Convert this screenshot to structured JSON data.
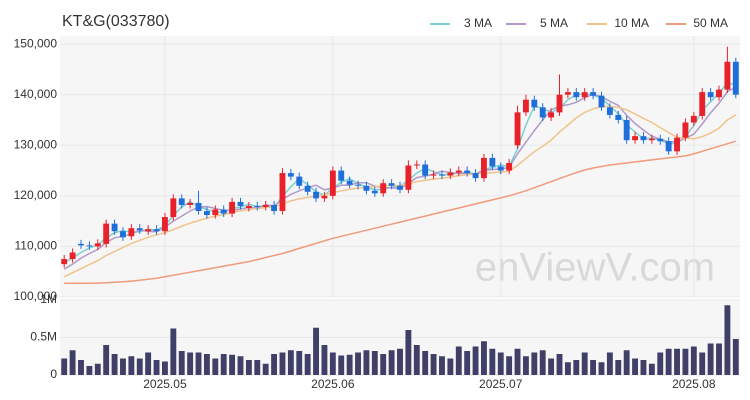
{
  "chart_data": {
    "type": "candlestick",
    "title": "KT&G(033780)",
    "watermark": "enViewV.com",
    "legend": "top-right",
    "up_color": "#e8212b",
    "down_color": "#1f6fdb",
    "grid": true,
    "categories": [
      null,
      null,
      null,
      null,
      null,
      null,
      null,
      null,
      null,
      null,
      null,
      null,
      "2025.05",
      null,
      null,
      null,
      null,
      null,
      null,
      null,
      null,
      null,
      null,
      null,
      null,
      null,
      null,
      null,
      null,
      null,
      null,
      null,
      "2025.06",
      null,
      null,
      null,
      null,
      null,
      null,
      null,
      null,
      null,
      null,
      null,
      null,
      null,
      null,
      null,
      null,
      null,
      null,
      null,
      "2025.07",
      null,
      null,
      null,
      null,
      null,
      null,
      null,
      null,
      null,
      null,
      null,
      null,
      null,
      null,
      null,
      null,
      null,
      null,
      null,
      null,
      null,
      null,
      "2025.08",
      null,
      null,
      null,
      null,
      null
    ],
    "open": [
      106500,
      107500,
      110500,
      110200,
      110000,
      110500,
      114500,
      113000,
      112000,
      113600,
      113000,
      113400,
      113000,
      115800,
      119500,
      118200,
      118600,
      117000,
      116200,
      117300,
      116500,
      118800,
      117600,
      118000,
      117800,
      118200,
      117000,
      124500,
      123800,
      122000,
      120800,
      119500,
      120000,
      125000,
      123000,
      122200,
      122000,
      121000,
      120500,
      122500,
      122000,
      121200,
      126000,
      126200,
      124000,
      124200,
      124000,
      124600,
      125000,
      124500,
      123500,
      127500,
      125800,
      125000,
      130000,
      136500,
      139000,
      137500,
      135500,
      136500,
      140000,
      140500,
      139500,
      140500,
      139800,
      137500,
      136000,
      135000,
      131000,
      131800,
      131000,
      131300,
      130800,
      128800,
      131500,
      134500,
      135800,
      140500,
      139500,
      141000,
      146500
    ],
    "high": [
      108300,
      109600,
      111300,
      111000,
      111400,
      115300,
      115300,
      113800,
      114400,
      114400,
      114200,
      114200,
      116600,
      120300,
      120300,
      119400,
      121000,
      117800,
      118100,
      118100,
      119600,
      119600,
      118800,
      118800,
      119000,
      119000,
      125500,
      125300,
      124600,
      122800,
      121600,
      120800,
      125800,
      125800,
      123800,
      123000,
      122800,
      121800,
      123300,
      123300,
      122800,
      127000,
      127000,
      127000,
      125000,
      125000,
      125400,
      125800,
      125800,
      125300,
      128300,
      128300,
      126600,
      127300,
      137800,
      140000,
      139800,
      138300,
      137300,
      144000,
      141300,
      141300,
      141300,
      141300,
      140600,
      138300,
      136800,
      135800,
      132600,
      132600,
      132100,
      132100,
      131600,
      132300,
      135300,
      136600,
      141300,
      141300,
      141800,
      149500,
      147300
    ],
    "low": [
      105800,
      106800,
      109500,
      109300,
      109300,
      109800,
      112300,
      111100,
      111300,
      112500,
      112300,
      112300,
      112300,
      115100,
      117500,
      117500,
      116300,
      115500,
      115500,
      115800,
      115800,
      117300,
      116900,
      117100,
      117100,
      116300,
      116300,
      123100,
      121300,
      120100,
      118800,
      118800,
      119300,
      122300,
      121500,
      121300,
      120300,
      119800,
      119800,
      121300,
      120500,
      120500,
      125300,
      123300,
      123300,
      123300,
      123300,
      123900,
      123800,
      122800,
      122800,
      125100,
      124300,
      124300,
      129300,
      135800,
      136800,
      134800,
      134800,
      135800,
      139300,
      138800,
      138800,
      139100,
      136800,
      135300,
      134300,
      130300,
      130300,
      130300,
      130300,
      130100,
      128100,
      128100,
      130800,
      133800,
      135100,
      138800,
      138800,
      140300,
      139300
    ],
    "close": [
      107500,
      108800,
      110200,
      110000,
      110600,
      114500,
      113000,
      111800,
      113600,
      113200,
      113400,
      113000,
      115800,
      119500,
      118200,
      118600,
      117000,
      116200,
      117300,
      116500,
      118800,
      118000,
      118000,
      117800,
      118200,
      117000,
      124500,
      123800,
      122000,
      120800,
      119500,
      120000,
      125000,
      123000,
      122200,
      122000,
      121000,
      120500,
      122500,
      122000,
      121200,
      126000,
      126200,
      124000,
      124200,
      124000,
      124600,
      125000,
      124500,
      123500,
      127500,
      125800,
      125000,
      126500,
      136500,
      139000,
      137500,
      135500,
      136500,
      140000,
      140500,
      139500,
      140500,
      139800,
      137500,
      136000,
      135000,
      131000,
      131800,
      131000,
      131300,
      130800,
      128800,
      131500,
      134500,
      135800,
      140500,
      139500,
      141000,
      146500,
      140000
    ],
    "ylim": [
      100000,
      151600
    ],
    "yticks": [
      {
        "value": 100000,
        "label": "100,000"
      },
      {
        "value": 110000,
        "label": "110,000"
      },
      {
        "value": 120000,
        "label": "120,000"
      },
      {
        "value": 130000,
        "label": "130,000"
      },
      {
        "value": 140000,
        "label": "140,000"
      },
      {
        "value": 150000,
        "label": "150,000"
      }
    ],
    "series": [
      {
        "name": "3 MA",
        "color": "#7ccfd0",
        "values": [
          106800,
          107700,
          108800,
          109700,
          110300,
          111700,
          112700,
          113100,
          112800,
          112900,
          113400,
          113200,
          114100,
          116100,
          117800,
          118800,
          117900,
          117300,
          116800,
          116700,
          117500,
          117800,
          118300,
          117900,
          118000,
          117700,
          119900,
          121800,
          123400,
          122200,
          120800,
          120100,
          121500,
          122700,
          123400,
          122400,
          121700,
          121200,
          121300,
          121700,
          121900,
          123100,
          124500,
          125400,
          124800,
          124100,
          124300,
          124500,
          124700,
          124300,
          125200,
          125600,
          126100,
          125800,
          129300,
          134000,
          137700,
          137300,
          136500,
          137300,
          139000,
          140000,
          140200,
          139900,
          139300,
          137800,
          136200,
          134000,
          132600,
          131300,
          131400,
          131000,
          130300,
          130400,
          131600,
          133900,
          136900,
          138600,
          140300,
          142300,
          142000
        ]
      },
      {
        "name": "5 MA",
        "color": "#b19ac9",
        "values": [
          105500,
          106500,
          107700,
          108600,
          109400,
          110800,
          111700,
          112000,
          112500,
          113200,
          113000,
          112900,
          113800,
          115000,
          116000,
          117000,
          117800,
          117900,
          117500,
          117100,
          117100,
          117400,
          117700,
          117600,
          118200,
          118000,
          119300,
          120300,
          121000,
          121600,
          122100,
          121200,
          121500,
          122100,
          122100,
          122600,
          122600,
          121900,
          121600,
          121600,
          121400,
          122500,
          123600,
          123900,
          124300,
          124900,
          124600,
          124400,
          124500,
          124300,
          125000,
          125200,
          125300,
          125600,
          128300,
          130600,
          132900,
          135000,
          137000,
          137700,
          138000,
          138500,
          139400,
          140100,
          139600,
          138700,
          137900,
          135900,
          134300,
          133000,
          131800,
          131200,
          130700,
          130700,
          131400,
          132200,
          134200,
          136400,
          138300,
          140600,
          141500
        ]
      },
      {
        "name": "10 MA",
        "color": "#f0c389",
        "values": [
          104000,
          104800,
          105600,
          106400,
          107200,
          108200,
          109000,
          109800,
          110600,
          111200,
          111800,
          112300,
          112700,
          113300,
          114000,
          114600,
          115100,
          115600,
          116000,
          116300,
          116700,
          117000,
          117300,
          117500,
          117700,
          117800,
          118400,
          119000,
          119400,
          119700,
          119900,
          120100,
          120600,
          121000,
          121300,
          121500,
          121700,
          121800,
          122000,
          122100,
          122000,
          122400,
          122800,
          123100,
          123300,
          123500,
          123700,
          124000,
          124200,
          124300,
          124500,
          124600,
          124700,
          124900,
          126000,
          127400,
          128700,
          129800,
          131000,
          132600,
          134000,
          135400,
          136500,
          137200,
          137600,
          137700,
          137500,
          137000,
          136200,
          135300,
          134500,
          133500,
          132500,
          131600,
          131400,
          131300,
          131700,
          132400,
          133400,
          135000,
          136000
        ]
      },
      {
        "name": "50 MA",
        "color": "#f19a7c",
        "values": [
          102700,
          102700,
          102700,
          102700,
          102750,
          102800,
          102900,
          103000,
          103150,
          103300,
          103500,
          103700,
          104000,
          104300,
          104600,
          104900,
          105200,
          105500,
          105800,
          106100,
          106400,
          106700,
          107000,
          107400,
          107800,
          108200,
          108600,
          109100,
          109600,
          110100,
          110600,
          111100,
          111600,
          112000,
          112400,
          112800,
          113200,
          113600,
          114000,
          114400,
          114800,
          115200,
          115600,
          116000,
          116400,
          116800,
          117200,
          117600,
          118000,
          118400,
          118800,
          119200,
          119600,
          120000,
          120500,
          121000,
          121600,
          122200,
          122800,
          123400,
          124000,
          124600,
          125100,
          125500,
          125800,
          126100,
          126300,
          126500,
          126700,
          126900,
          127100,
          127300,
          127500,
          127700,
          127900,
          128300,
          128800,
          129300,
          129800,
          130300,
          130800
        ]
      }
    ],
    "volume": {
      "color": "#3f3f68",
      "ylim": [
        0,
        1000000
      ],
      "yticks": [
        0,
        {
          "value": 500000,
          "label": "0.5M"
        },
        {
          "value": 1000000,
          "label": "1M"
        }
      ],
      "values": [
        220000,
        330000,
        200000,
        120000,
        150000,
        400000,
        280000,
        220000,
        250000,
        220000,
        300000,
        200000,
        180000,
        620000,
        320000,
        300000,
        300000,
        280000,
        220000,
        280000,
        270000,
        250000,
        200000,
        200000,
        150000,
        280000,
        300000,
        330000,
        320000,
        280000,
        630000,
        400000,
        300000,
        260000,
        270000,
        300000,
        330000,
        320000,
        280000,
        330000,
        350000,
        600000,
        400000,
        320000,
        280000,
        250000,
        220000,
        380000,
        320000,
        380000,
        450000,
        350000,
        300000,
        250000,
        350000,
        250000,
        300000,
        330000,
        220000,
        280000,
        170000,
        200000,
        300000,
        200000,
        170000,
        300000,
        200000,
        330000,
        220000,
        200000,
        150000,
        300000,
        350000,
        350000,
        350000,
        380000,
        300000,
        420000,
        420000,
        930000,
        480000
      ]
    }
  }
}
